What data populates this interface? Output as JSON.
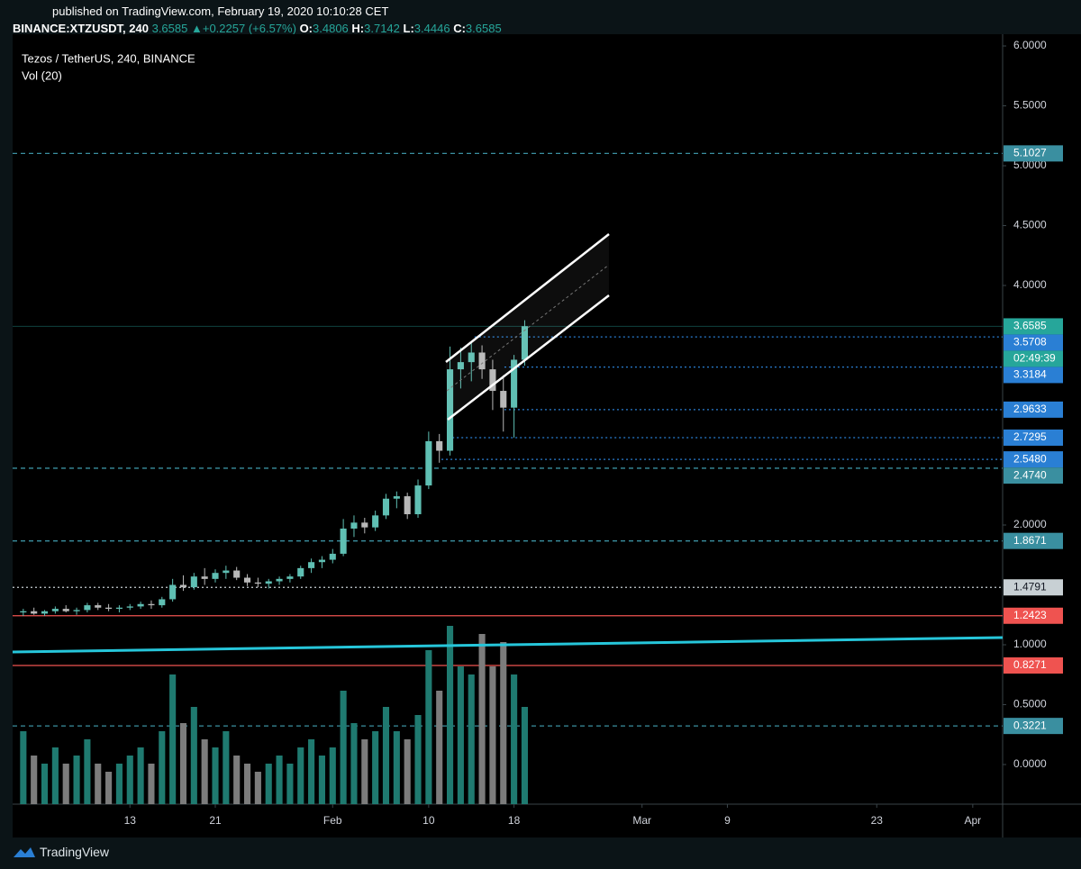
{
  "header": {
    "published": "published on TradingView.com, February 19, 2020 10:10:28 CET",
    "symbol": "BINANCE:XTZUSDT, 240",
    "last": "3.6585",
    "change": "+0.2257 (+6.57%)",
    "o_label": "O:",
    "o": "3.4806",
    "h_label": "H:",
    "h": "3.7142",
    "l_label": "L:",
    "l": "3.4446",
    "c_label": "C:",
    "c": "3.6585"
  },
  "footer": {
    "brand": "TradingView"
  },
  "chart_data": {
    "type": "candlestick",
    "title": "Tezos / TetherUS, 240, BINANCE",
    "volume_label": "Vol (20)",
    "x": [
      3,
      4,
      5,
      6,
      7,
      8,
      9,
      10,
      11,
      12,
      13,
      14,
      15,
      16,
      17,
      18,
      19,
      20,
      21,
      22,
      23,
      24,
      25,
      26,
      27,
      28,
      29,
      30,
      31,
      32,
      33,
      34,
      35,
      36,
      37,
      38,
      39,
      40,
      41,
      42,
      43,
      44,
      45,
      46,
      47,
      48,
      49,
      50
    ],
    "open": [
      1.27,
      1.28,
      1.26,
      1.28,
      1.3,
      1.28,
      1.29,
      1.33,
      1.31,
      1.3,
      1.31,
      1.32,
      1.34,
      1.33,
      1.38,
      1.5,
      1.48,
      1.57,
      1.55,
      1.6,
      1.62,
      1.56,
      1.52,
      1.51,
      1.53,
      1.55,
      1.57,
      1.64,
      1.69,
      1.71,
      1.76,
      1.97,
      2.02,
      1.98,
      2.08,
      2.22,
      2.24,
      2.09,
      2.33,
      2.7,
      2.62,
      3.3,
      3.36,
      3.44,
      3.3,
      3.12,
      2.98,
      3.38
    ],
    "high": [
      1.3,
      1.31,
      1.29,
      1.32,
      1.33,
      1.31,
      1.35,
      1.35,
      1.34,
      1.33,
      1.34,
      1.36,
      1.37,
      1.4,
      1.55,
      1.58,
      1.6,
      1.64,
      1.63,
      1.66,
      1.65,
      1.59,
      1.56,
      1.55,
      1.57,
      1.59,
      1.66,
      1.72,
      1.74,
      1.8,
      2.05,
      2.08,
      2.06,
      2.12,
      2.26,
      2.28,
      2.27,
      2.38,
      2.78,
      2.76,
      3.49,
      3.48,
      3.52,
      3.5,
      3.38,
      3.25,
      3.42,
      3.71
    ],
    "low": [
      1.24,
      1.25,
      1.24,
      1.26,
      1.27,
      1.25,
      1.27,
      1.29,
      1.28,
      1.27,
      1.29,
      1.3,
      1.3,
      1.31,
      1.36,
      1.45,
      1.46,
      1.5,
      1.52,
      1.55,
      1.54,
      1.49,
      1.48,
      1.47,
      1.5,
      1.52,
      1.55,
      1.6,
      1.64,
      1.68,
      1.74,
      1.9,
      1.93,
      1.95,
      2.05,
      2.14,
      2.05,
      2.06,
      2.3,
      2.52,
      2.58,
      3.14,
      3.2,
      3.22,
      2.96,
      2.78,
      2.73,
      3.33
    ],
    "close": [
      1.28,
      1.26,
      1.28,
      1.3,
      1.28,
      1.29,
      1.33,
      1.31,
      1.3,
      1.31,
      1.32,
      1.34,
      1.33,
      1.38,
      1.5,
      1.48,
      1.57,
      1.55,
      1.6,
      1.62,
      1.56,
      1.52,
      1.51,
      1.53,
      1.55,
      1.57,
      1.64,
      1.69,
      1.71,
      1.76,
      1.97,
      2.02,
      1.98,
      2.08,
      2.22,
      2.24,
      2.09,
      2.33,
      2.7,
      2.62,
      3.3,
      3.36,
      3.44,
      3.3,
      3.12,
      2.98,
      3.38,
      3.66
    ],
    "volume": [
      9,
      6,
      5,
      7,
      5,
      6,
      8,
      5,
      4,
      5,
      6,
      7,
      5,
      9,
      16,
      10,
      12,
      8,
      7,
      9,
      6,
      5,
      4,
      5,
      6,
      5,
      7,
      8,
      6,
      7,
      14,
      10,
      8,
      9,
      12,
      9,
      8,
      11,
      19,
      14,
      22,
      17,
      16,
      21,
      17,
      20,
      16,
      12
    ],
    "up_color": "#5fbfb3",
    "down_color": "#b8b8b8",
    "volume_up_color": "#1f7a70",
    "volume_down_color": "#7c7c7c",
    "xlim": [
      2,
      94.8
    ],
    "xticks": [
      {
        "value": 13,
        "label": "13"
      },
      {
        "value": 21,
        "label": "21"
      },
      {
        "value": 32,
        "label": "Feb"
      },
      {
        "value": 41,
        "label": "10"
      },
      {
        "value": 49,
        "label": "18"
      },
      {
        "value": 61,
        "label": "Mar"
      },
      {
        "value": 69,
        "label": "9"
      },
      {
        "value": 83,
        "label": "23"
      },
      {
        "value": 92,
        "label": "Apr"
      }
    ],
    "ylim": [
      -0.331,
      6.098
    ],
    "yticks": [
      {
        "value": 6,
        "label": "6.0000"
      },
      {
        "value": 5.5,
        "label": "5.5000"
      },
      {
        "value": 5,
        "label": "5.0000"
      },
      {
        "value": 4.5,
        "label": "4.5000"
      },
      {
        "value": 4,
        "label": "4.0000"
      },
      {
        "value": 2,
        "label": "2.0000"
      },
      {
        "value": 1,
        "label": "1.0000"
      },
      {
        "value": 0.5,
        "label": "0.5000"
      },
      {
        "value": 0,
        "label": "0.0000"
      }
    ],
    "y2lim": [
      0,
      95
    ],
    "countdown": "02:49:39",
    "levels": [
      {
        "value": 5.1027,
        "color": "#3a8fa0",
        "style": "dashed"
      },
      {
        "value": 3.6585,
        "color": "#26a69a",
        "style": "solid",
        "current": true
      },
      {
        "value": 3.5708,
        "color": "#2a7fd4",
        "style": "dotted",
        "from": 45.3
      },
      {
        "value": 3.3184,
        "color": "#2a7fd4",
        "style": "dotted",
        "from": 48.1
      },
      {
        "value": 2.9633,
        "color": "#2a7fd4",
        "style": "dotted",
        "from": 48.1
      },
      {
        "value": 2.7295,
        "color": "#2a7fd4",
        "style": "dotted",
        "from": 42.8
      },
      {
        "value": 2.548,
        "label": "2.5480",
        "color": "#2a7fd4",
        "style": "dotted",
        "from": 42.2
      },
      {
        "value": 2.474,
        "label": "2.4740",
        "color": "#3a8fa0",
        "style": "dashed"
      },
      {
        "value": 1.8671,
        "color": "#3a8fa0",
        "style": "dashed"
      },
      {
        "value": 1.4791,
        "color": "#c8d0d4",
        "style": "dotted"
      },
      {
        "value": 1.2423,
        "color": "#ef5350",
        "style": "solid"
      },
      {
        "value": 0.8271,
        "color": "#ef5350",
        "style": "solid"
      },
      {
        "value": 0.3221,
        "color": "#3a8fa0",
        "style": "dashed"
      }
    ]
  }
}
